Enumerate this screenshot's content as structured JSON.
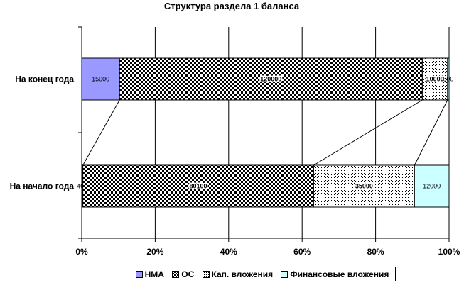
{
  "chart_data": {
    "type": "bar",
    "orientation": "horizontal",
    "stacked": "percent",
    "title": "Структура раздела 1 баланса",
    "categories": [
      "На конец года",
      "На начало года"
    ],
    "series": [
      {
        "name": "НМА",
        "values": [
          15000,
          400
        ],
        "labels": [
          "15000",
          "400"
        ],
        "color": "#9999ff",
        "pattern": "solid"
      },
      {
        "name": "ОС",
        "values": [
          120000,
          80100
        ],
        "labels": [
          "120000",
          "80100"
        ],
        "color": "#000000",
        "pattern": "checker"
      },
      {
        "name": "Кап. вложения",
        "values": [
          10000,
          35000
        ],
        "labels": [
          "10000",
          "35000"
        ],
        "color": "#000000",
        "pattern": "dots"
      },
      {
        "name": "Финансовые вложения",
        "values": [
          600,
          12000
        ],
        "labels": [
          "600",
          "12000"
        ],
        "color": "#ccffff",
        "pattern": "solid"
      }
    ],
    "x_ticks": [
      "0%",
      "20%",
      "40%",
      "60%",
      "80%",
      "100%"
    ],
    "xlim": [
      0,
      100
    ],
    "grid": true,
    "series_lines": true,
    "legend_position": "bottom"
  }
}
